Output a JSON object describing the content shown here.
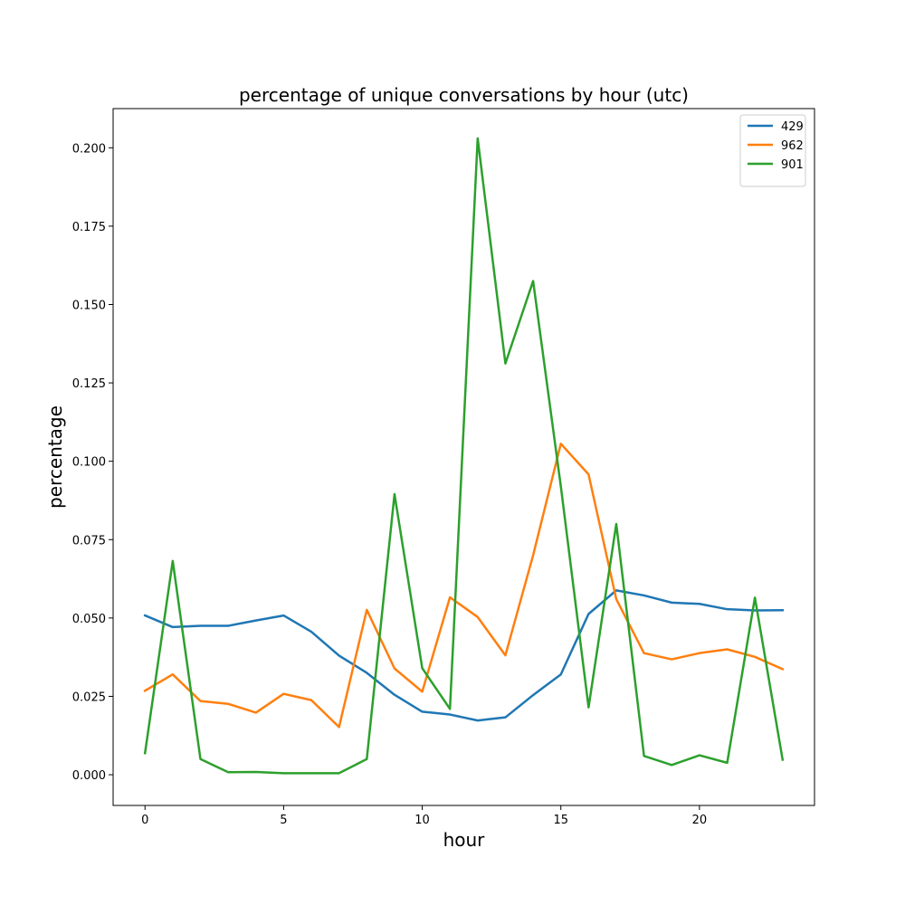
{
  "chart_data": {
    "type": "line",
    "title": "percentage of unique conversations by hour (utc)",
    "xlabel": "hour",
    "ylabel": "percentage",
    "xlim": [
      -1.15,
      24.15
    ],
    "ylim": [
      -0.0098,
      0.2125
    ],
    "xticks": [
      0,
      5,
      10,
      15,
      20
    ],
    "xtick_labels": [
      "0",
      "5",
      "10",
      "15",
      "20"
    ],
    "yticks": [
      0.0,
      0.025,
      0.05,
      0.075,
      0.1,
      0.125,
      0.15,
      0.175,
      0.2
    ],
    "ytick_labels": [
      "0.000",
      "0.025",
      "0.050",
      "0.075",
      "0.100",
      "0.125",
      "0.150",
      "0.175",
      "0.200"
    ],
    "grid": false,
    "legend_position": "top-right",
    "x": [
      0,
      1,
      2,
      3,
      4,
      5,
      6,
      7,
      8,
      9,
      10,
      11,
      12,
      13,
      14,
      15,
      16,
      17,
      18,
      19,
      20,
      21,
      22,
      23
    ],
    "series": [
      {
        "name": "429",
        "color": "#1f77b4",
        "values": [
          0.0508,
          0.0471,
          0.0475,
          0.0475,
          0.0492,
          0.0508,
          0.0456,
          0.038,
          0.0325,
          0.0255,
          0.0201,
          0.0192,
          0.0173,
          0.0183,
          0.0254,
          0.032,
          0.0513,
          0.0588,
          0.0572,
          0.0549,
          0.0545,
          0.0528,
          0.0524,
          0.0525
        ]
      },
      {
        "name": "962",
        "color": "#ff7f0e",
        "values": [
          0.0268,
          0.032,
          0.0235,
          0.0226,
          0.0198,
          0.0258,
          0.0238,
          0.0152,
          0.0526,
          0.0339,
          0.0265,
          0.0566,
          0.0503,
          0.0381,
          0.07,
          0.1056,
          0.0958,
          0.056,
          0.0388,
          0.0368,
          0.0388,
          0.04,
          0.0376,
          0.0337
        ]
      },
      {
        "name": "901",
        "color": "#2ca02c",
        "values": [
          0.0069,
          0.0682,
          0.005,
          0.0008,
          0.0009,
          0.0005,
          0.0005,
          0.0005,
          0.005,
          0.0895,
          0.034,
          0.021,
          0.203,
          0.1312,
          0.1575,
          0.092,
          0.0215,
          0.08,
          0.006,
          0.0031,
          0.0062,
          0.0038,
          0.0565,
          0.0048
        ]
      }
    ]
  }
}
